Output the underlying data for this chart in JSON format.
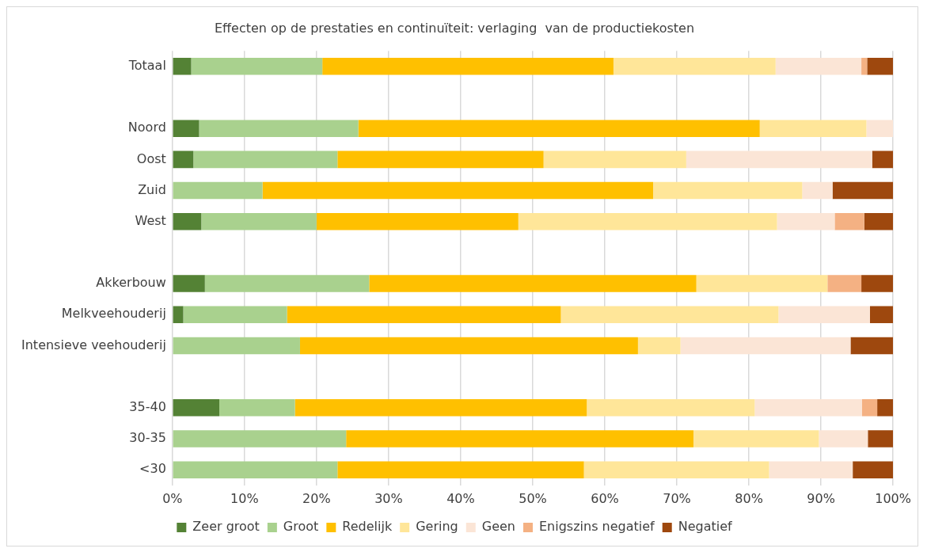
{
  "chart_data": {
    "type": "bar",
    "orientation": "horizontal",
    "stacked": true,
    "title": "Effecten op de prestaties en continuïteit: verlaging  van de productiekosten",
    "categories": [
      "Totaal",
      null,
      "Noord",
      "Oost",
      "Zuid",
      "West",
      null,
      "Akkerbouw",
      "Melkveehouderij",
      "Intensieve veehouderij",
      null,
      "35-40",
      "30-35",
      "<30"
    ],
    "series": [
      {
        "name": "Zeer groot",
        "color": "#548235",
        "values": [
          2.6,
          null,
          3.7,
          2.9,
          0,
          4.0,
          null,
          4.5,
          1.5,
          0,
          null,
          6.5,
          0,
          0
        ]
      },
      {
        "name": "Groot",
        "color": "#a9d18e",
        "values": [
          18.2,
          null,
          22.1,
          20.0,
          12.5,
          16.0,
          null,
          22.8,
          14.4,
          17.7,
          null,
          10.5,
          24.1,
          22.9
        ]
      },
      {
        "name": "Redelijk",
        "color": "#ffc000",
        "values": [
          40.4,
          null,
          55.7,
          28.6,
          54.2,
          28.0,
          null,
          45.4,
          38.0,
          46.9,
          null,
          40.5,
          48.2,
          34.2
        ]
      },
      {
        "name": "Gering",
        "color": "#ffe699",
        "values": [
          22.5,
          null,
          14.8,
          19.8,
          20.7,
          35.9,
          null,
          18.2,
          30.2,
          5.9,
          null,
          23.3,
          17.4,
          25.7
        ]
      },
      {
        "name": "Geen",
        "color": "#fbe5d6",
        "values": [
          11.9,
          null,
          3.7,
          25.8,
          4.2,
          8.0,
          null,
          0,
          12.7,
          23.6,
          null,
          14.9,
          6.8,
          11.6
        ]
      },
      {
        "name": "Enigszins negatief",
        "color": "#f4b183",
        "values": [
          0.8,
          null,
          0,
          0,
          0,
          4.1,
          null,
          4.7,
          0,
          0,
          null,
          2.1,
          0,
          0
        ]
      },
      {
        "name": "Negatief",
        "color": "#9e480e",
        "values": [
          3.6,
          null,
          0,
          2.9,
          8.4,
          4.0,
          null,
          4.4,
          3.2,
          5.9,
          null,
          2.2,
          3.5,
          5.6
        ]
      }
    ],
    "xlim": [
      0,
      100
    ],
    "xticks": [
      {
        "value": 0,
        "label": "0%"
      },
      {
        "value": 10,
        "label": "10%"
      },
      {
        "value": 20,
        "label": "20%"
      },
      {
        "value": 30,
        "label": "30%"
      },
      {
        "value": 40,
        "label": "40%"
      },
      {
        "value": 50,
        "label": "50%"
      },
      {
        "value": 60,
        "label": "60%"
      },
      {
        "value": 70,
        "label": "70%"
      },
      {
        "value": 80,
        "label": "80%"
      },
      {
        "value": 90,
        "label": "90%"
      },
      {
        "value": 100,
        "label": "100%"
      }
    ],
    "grid": "x",
    "legend": "bottom"
  }
}
